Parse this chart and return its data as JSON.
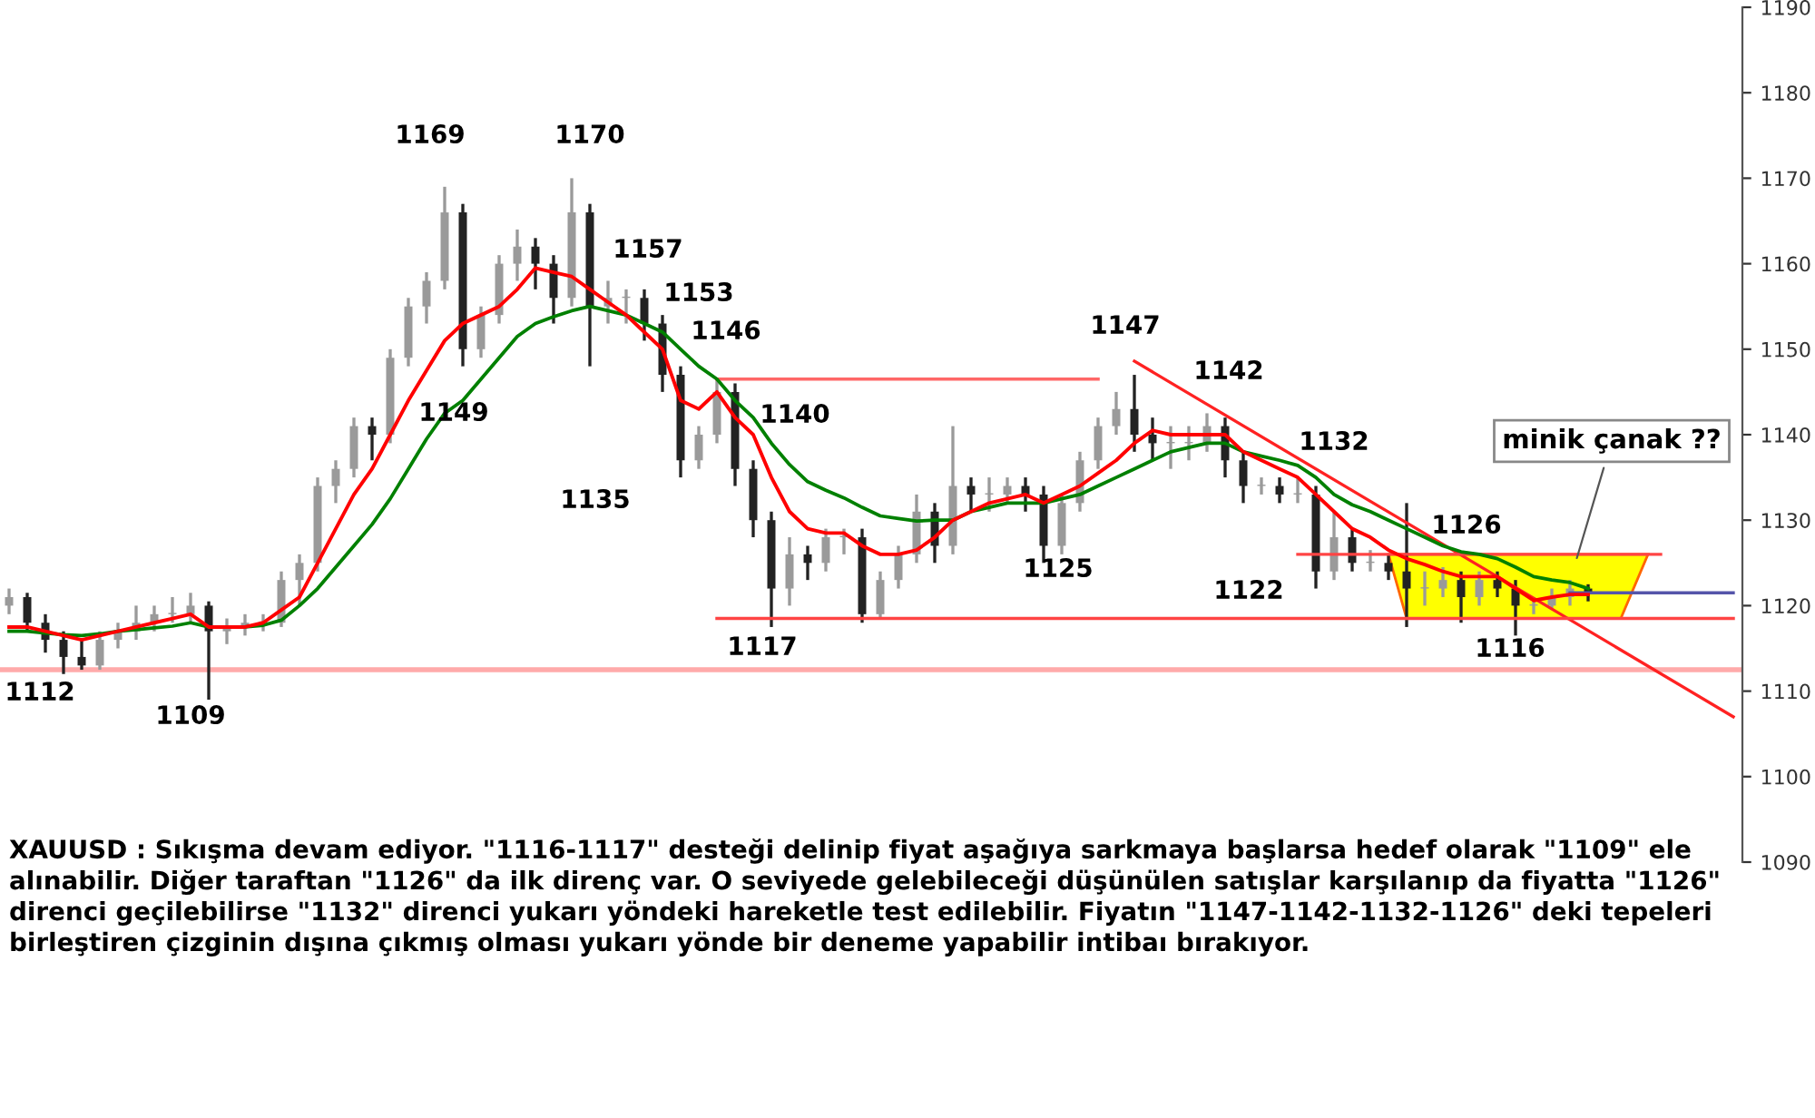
{
  "chart_data": {
    "type": "candlestick",
    "categories": [
      null,
      null,
      null,
      null,
      null,
      null,
      null,
      null,
      null,
      null,
      null,
      null,
      null,
      null,
      null,
      null,
      null,
      null,
      null,
      null,
      null,
      null,
      null,
      null,
      null,
      null,
      null,
      null,
      null,
      null,
      null,
      null,
      null,
      null,
      null,
      null,
      null,
      null,
      null,
      null,
      null,
      null,
      null,
      null,
      null,
      null,
      null,
      null,
      null,
      null,
      null,
      null,
      null,
      null,
      null,
      null,
      null,
      null,
      null,
      null,
      null,
      null,
      null,
      null,
      null,
      null,
      null,
      null,
      null,
      null,
      null,
      null,
      null,
      null,
      null,
      null,
      null,
      null,
      null,
      null,
      null,
      null,
      null,
      null,
      null,
      null,
      null,
      null,
      null,
      null,
      null,
      null,
      null,
      null,
      null,
      null
    ],
    "ohlc": [
      [
        1120,
        1122,
        1119,
        1121
      ],
      [
        1121,
        1121.5,
        1117,
        1118
      ],
      [
        1118,
        1119,
        1114.5,
        1116
      ],
      [
        1116,
        1117,
        1112,
        1114
      ],
      [
        1114,
        1116,
        1112.5,
        1113
      ],
      [
        1113,
        1117,
        1112.5,
        1116
      ],
      [
        1116,
        1118,
        1115,
        1117
      ],
      [
        1117,
        1120,
        1116,
        1118
      ],
      [
        1118,
        1120,
        1117,
        1119
      ],
      [
        1119,
        1121,
        1118,
        1119
      ],
      [
        1119,
        1121.5,
        1118,
        1120
      ],
      [
        1120,
        1120.5,
        1109,
        1117
      ],
      [
        1117,
        1118.5,
        1115.5,
        1117.5
      ],
      [
        1117.5,
        1119,
        1116.5,
        1118
      ],
      [
        1118,
        1119,
        1117,
        1118
      ],
      [
        1118,
        1124,
        1117.5,
        1123
      ],
      [
        1123,
        1126,
        1120,
        1125
      ],
      [
        1125,
        1135,
        1124,
        1134
      ],
      [
        1134,
        1137,
        1132,
        1136
      ],
      [
        1136,
        1142,
        1135,
        1141
      ],
      [
        1141,
        1142,
        1137,
        1140
      ],
      [
        1140,
        1150,
        1139,
        1149
      ],
      [
        1149,
        1156,
        1148,
        1155
      ],
      [
        1155,
        1159,
        1153,
        1158
      ],
      [
        1158,
        1169,
        1157,
        1166
      ],
      [
        1166,
        1167,
        1148,
        1150
      ],
      [
        1150,
        1155,
        1149,
        1154
      ],
      [
        1154,
        1161,
        1153,
        1160
      ],
      [
        1160,
        1164,
        1158,
        1162
      ],
      [
        1162,
        1163,
        1157,
        1160
      ],
      [
        1160,
        1161,
        1153,
        1156
      ],
      [
        1156,
        1170,
        1155,
        1166
      ],
      [
        1166,
        1167,
        1148,
        1155
      ],
      [
        1155,
        1158,
        1153,
        1156
      ],
      [
        1156,
        1157,
        1153,
        1156
      ],
      [
        1156,
        1157,
        1151,
        1153
      ],
      [
        1153,
        1154,
        1145,
        1147
      ],
      [
        1147,
        1148,
        1135,
        1137
      ],
      [
        1137,
        1141,
        1136,
        1140
      ],
      [
        1140,
        1146.5,
        1139,
        1145
      ],
      [
        1145,
        1146,
        1134,
        1136
      ],
      [
        1136,
        1137,
        1128,
        1130
      ],
      [
        1130,
        1131,
        1117.5,
        1122
      ],
      [
        1122,
        1128,
        1120,
        1126
      ],
      [
        1126,
        1127,
        1123,
        1125
      ],
      [
        1125,
        1129,
        1124,
        1128
      ],
      [
        1128,
        1129,
        1126,
        1128
      ],
      [
        1128,
        1129,
        1118,
        1119
      ],
      [
        1119,
        1124,
        1118.5,
        1123
      ],
      [
        1123,
        1127,
        1122,
        1126
      ],
      [
        1126,
        1133,
        1125,
        1131
      ],
      [
        1131,
        1132,
        1125,
        1127
      ],
      [
        1127,
        1141,
        1126,
        1134
      ],
      [
        1134,
        1135,
        1131,
        1133
      ],
      [
        1133,
        1135,
        1131,
        1133
      ],
      [
        1133,
        1135,
        1132,
        1134
      ],
      [
        1134,
        1135,
        1131,
        1133
      ],
      [
        1133,
        1134,
        1125,
        1127
      ],
      [
        1127,
        1133,
        1126,
        1132
      ],
      [
        1132,
        1138,
        1131,
        1137
      ],
      [
        1137,
        1142,
        1136,
        1141
      ],
      [
        1141,
        1145,
        1140,
        1143
      ],
      [
        1143,
        1147,
        1138,
        1140
      ],
      [
        1140,
        1142,
        1137,
        1139
      ],
      [
        1139,
        1141,
        1136,
        1139
      ],
      [
        1139,
        1141,
        1137,
        1139
      ],
      [
        1139,
        1142.5,
        1138,
        1141
      ],
      [
        1141,
        1142,
        1135,
        1137
      ],
      [
        1137,
        1138,
        1132,
        1134
      ],
      [
        1134,
        1135,
        1133,
        1134
      ],
      [
        1134,
        1135,
        1132,
        1133
      ],
      [
        1133,
        1135,
        1132,
        1133
      ],
      [
        1133,
        1134,
        1122,
        1124
      ],
      [
        1124,
        1131,
        1123,
        1128
      ],
      [
        1128,
        1129,
        1124,
        1125
      ],
      [
        1125,
        1126.5,
        1124,
        1125
      ],
      [
        1125,
        1126,
        1123,
        1124
      ],
      [
        1124,
        1132,
        1117.5,
        1122
      ],
      [
        1122,
        1124,
        1120,
        1122
      ],
      [
        1122,
        1124.5,
        1121,
        1123
      ],
      [
        1123,
        1124,
        1118,
        1121
      ],
      [
        1121,
        1124,
        1120,
        1123
      ],
      [
        1123,
        1124,
        1121,
        1122
      ],
      [
        1122,
        1123,
        1116.5,
        1120
      ],
      [
        1120,
        1121,
        1119,
        1120
      ],
      [
        1120,
        1122,
        1119.5,
        1121
      ],
      [
        1121,
        1123,
        1120,
        1122
      ],
      [
        1122,
        1122.5,
        1120.5,
        1121.5
      ],
      null,
      null,
      null,
      null,
      null,
      null,
      null,
      null
    ],
    "series": [
      {
        "type": "line",
        "color": "#ff0000",
        "values": [
          1117.5,
          1117.5,
          1117,
          1116.5,
          1116,
          1116.5,
          1117,
          1117.5,
          1118,
          1118.5,
          1119,
          1117.5,
          1117.5,
          1117.5,
          1118,
          1119.5,
          1121,
          1125,
          1129,
          1133,
          1136,
          1140,
          1144,
          1147.5,
          1151,
          1153,
          1154,
          1155,
          1157,
          1159.5,
          1159,
          1158.5,
          1157,
          1155.5,
          1154,
          1152,
          1150,
          1144,
          1143,
          1145,
          1142,
          1140,
          1135,
          1131,
          1129,
          1128.5,
          1128.5,
          1127,
          1126,
          1126,
          1126.5,
          1128,
          1130,
          1131,
          1132,
          1132.5,
          1133,
          1132,
          1133,
          1134,
          1135.5,
          1137,
          1139,
          1140.5,
          1140,
          1140,
          1140,
          1140,
          1138,
          1137,
          1136,
          1135,
          1133,
          1131,
          1129,
          1128,
          1126.5,
          1125.5,
          1124.8,
          1124,
          1123.4,
          1123.4,
          1123.4,
          1122,
          1120.6,
          1121,
          1121.3,
          1121.3,
          null,
          null,
          null,
          null,
          null,
          null,
          null,
          null
        ]
      },
      {
        "type": "line",
        "color": "#008000",
        "values": [
          1117,
          1117,
          1116.8,
          1116.6,
          1116.5,
          1116.7,
          1117,
          1117.2,
          1117.4,
          1117.6,
          1118,
          1117.5,
          1117.5,
          1117.5,
          1117.7,
          1118.3,
          1120,
          1122,
          1124.5,
          1127,
          1129.5,
          1132.5,
          1136,
          1139.5,
          1142.5,
          1144,
          1146.5,
          1149,
          1151.5,
          1153,
          1153.8,
          1154.5,
          1155,
          1154.5,
          1154,
          1153,
          1152,
          1150,
          1148,
          1146.5,
          1144,
          1142,
          1139,
          1136.5,
          1134.5,
          1133.5,
          1132.6,
          1131.5,
          1130.5,
          1130.2,
          1129.9,
          1130,
          1130,
          1131,
          1131.5,
          1132,
          1132,
          1132,
          1132.5,
          1133,
          1134,
          1135,
          1136,
          1137,
          1138,
          1138.5,
          1139,
          1139,
          1138,
          1137.5,
          1137,
          1136.4,
          1135,
          1133,
          1131.8,
          1131,
          1130,
          1129,
          1128,
          1127,
          1126.3,
          1126,
          1125.5,
          1124.5,
          1123.4,
          1123,
          1122.7,
          1122,
          null,
          null,
          null,
          null,
          null,
          null,
          null,
          null
        ]
      },
      {
        "type": "line",
        "color": "#ff6666",
        "values": [
          null,
          null,
          null,
          null,
          null,
          null,
          null,
          null,
          null,
          null,
          null,
          null,
          null,
          null,
          null,
          null,
          null,
          null,
          null,
          null,
          null,
          null,
          null,
          null,
          null,
          null,
          null,
          null,
          null,
          null,
          null,
          null,
          null,
          null,
          null,
          null,
          null,
          null,
          null,
          1146.5,
          null,
          null,
          null,
          null,
          null,
          null,
          null,
          null,
          null,
          null,
          null,
          null,
          null,
          null,
          null,
          null,
          null,
          null,
          null,
          null,
          1146.5,
          null,
          null,
          null,
          null,
          null,
          null,
          null,
          null,
          null,
          null,
          null,
          null,
          null,
          null,
          null,
          null,
          null,
          null,
          null,
          null,
          null,
          null,
          null,
          null,
          null,
          null,
          null,
          null,
          null,
          null,
          null,
          null,
          null,
          null,
          null
        ]
      },
      {
        "type": "line",
        "color": "#ff4444",
        "values": [
          null,
          null,
          null,
          null,
          null,
          null,
          null,
          null,
          null,
          null,
          null,
          null,
          null,
          null,
          null,
          null,
          null,
          null,
          null,
          null,
          null,
          null,
          null,
          null,
          null,
          null,
          null,
          null,
          null,
          null,
          null,
          null,
          null,
          null,
          null,
          null,
          null,
          null,
          null,
          1118.5,
          null,
          null,
          null,
          null,
          null,
          null,
          null,
          null,
          null,
          null,
          null,
          null,
          null,
          null,
          null,
          null,
          null,
          null,
          null,
          null,
          null,
          null,
          null,
          null,
          null,
          null,
          null,
          null,
          null,
          null,
          null,
          null,
          null,
          null,
          null,
          null,
          null,
          null,
          null,
          null,
          null,
          null,
          null,
          null,
          null,
          null,
          null,
          null,
          null,
          null,
          null,
          null,
          null,
          null,
          null,
          1118.5
        ]
      },
      {
        "type": "line",
        "color": "#ff4444",
        "values": [
          null,
          null,
          null,
          null,
          null,
          null,
          null,
          null,
          null,
          null,
          null,
          null,
          null,
          null,
          null,
          null,
          null,
          null,
          null,
          null,
          null,
          null,
          null,
          null,
          null,
          null,
          null,
          null,
          null,
          null,
          null,
          null,
          null,
          null,
          null,
          null,
          null,
          null,
          null,
          null,
          null,
          null,
          null,
          null,
          null,
          null,
          null,
          null,
          null,
          null,
          null,
          null,
          null,
          null,
          null,
          null,
          null,
          null,
          null,
          null,
          null,
          null,
          null,
          null,
          null,
          null,
          null,
          null,
          null,
          null,
          null,
          1126,
          null,
          null,
          null,
          null,
          null,
          null,
          null,
          null,
          null,
          null,
          null,
          null,
          null,
          null,
          null,
          null,
          null,
          null,
          null,
          1126,
          null,
          null,
          null,
          null
        ]
      },
      {
        "type": "line",
        "color": "#5555aa",
        "values": [
          null,
          null,
          null,
          null,
          null,
          null,
          null,
          null,
          null,
          null,
          null,
          null,
          null,
          null,
          null,
          null,
          null,
          null,
          null,
          null,
          null,
          null,
          null,
          null,
          null,
          null,
          null,
          null,
          null,
          null,
          null,
          null,
          null,
          null,
          null,
          null,
          null,
          null,
          null,
          null,
          null,
          null,
          null,
          null,
          null,
          null,
          null,
          null,
          null,
          null,
          null,
          null,
          null,
          null,
          null,
          null,
          null,
          null,
          null,
          null,
          null,
          null,
          null,
          null,
          null,
          null,
          null,
          null,
          null,
          null,
          null,
          null,
          null,
          null,
          null,
          null,
          null,
          null,
          null,
          null,
          null,
          null,
          null,
          null,
          null,
          null,
          1121.5,
          null,
          null,
          null,
          null,
          null,
          null,
          null,
          null,
          1121.5
        ]
      },
      {
        "type": "line",
        "color": "#ff2222",
        "values": [
          null,
          null,
          null,
          null,
          null,
          null,
          null,
          null,
          null,
          null,
          null,
          null,
          null,
          null,
          null,
          null,
          null,
          null,
          null,
          null,
          null,
          null,
          null,
          null,
          null,
          null,
          null,
          null,
          null,
          null,
          null,
          null,
          null,
          null,
          null,
          null,
          null,
          null,
          null,
          null,
          null,
          null,
          null,
          null,
          null,
          null,
          null,
          null,
          null,
          null,
          null,
          null,
          null,
          null,
          null,
          null,
          null,
          null,
          null,
          null,
          null,
          null,
          1148.6,
          null,
          null,
          null,
          null,
          null,
          null,
          null,
          null,
          null,
          null,
          null,
          null,
          null,
          null,
          null,
          null,
          null,
          null,
          null,
          null,
          null,
          null,
          null,
          null,
          null,
          null,
          null,
          null,
          null,
          null,
          null,
          null,
          1107
        ]
      }
    ],
    "ref_lines": [
      {
        "axis": "y",
        "value": 1112.5,
        "color": "#ffaaaa"
      }
    ],
    "bands": [
      {
        "axis": "y",
        "from": 1118.5,
        "to": 1126,
        "color": "#ffff00"
      }
    ],
    "ylim": [
      1090,
      1190
    ],
    "yticks": [
      1090,
      1100,
      1110,
      1120,
      1130,
      1140,
      1150,
      1160,
      1170,
      1180,
      1190
    ],
    "tick_labels": "y",
    "grid": false,
    "legend": false,
    "annotations": [
      "1112",
      "1109",
      "1169",
      "1170",
      "1157",
      "1149",
      "1153",
      "1146",
      "1140",
      "1135",
      "1117",
      "1147",
      "1142",
      "1132",
      "1125",
      "1122",
      "1126",
      "1116",
      "minik çanak ??",
      "XAUUSD : Sıkışma devam ediyor. \"1116-1117\" desteği delinip fiyat aşağıya sarkmaya başlarsa hedef olarak \"1109\" ele alınabilir. Diğer taraftan \"1126\" da ilk direnç var. O seviyede gelebileceği düşünülen satışlar karşılanıp da fiyatta \"1126\" direnci geçilebilirse \"1132\" direnci yukarı yöndeki hareketle test edilebilir. Fiyatın \"1147-1142-1132-1126\" deki tepeleri birleştiren çizginin dışına çıkmış olması yukarı yönde bir deneme yapabilir intibaı bırakıyor."
    ]
  }
}
